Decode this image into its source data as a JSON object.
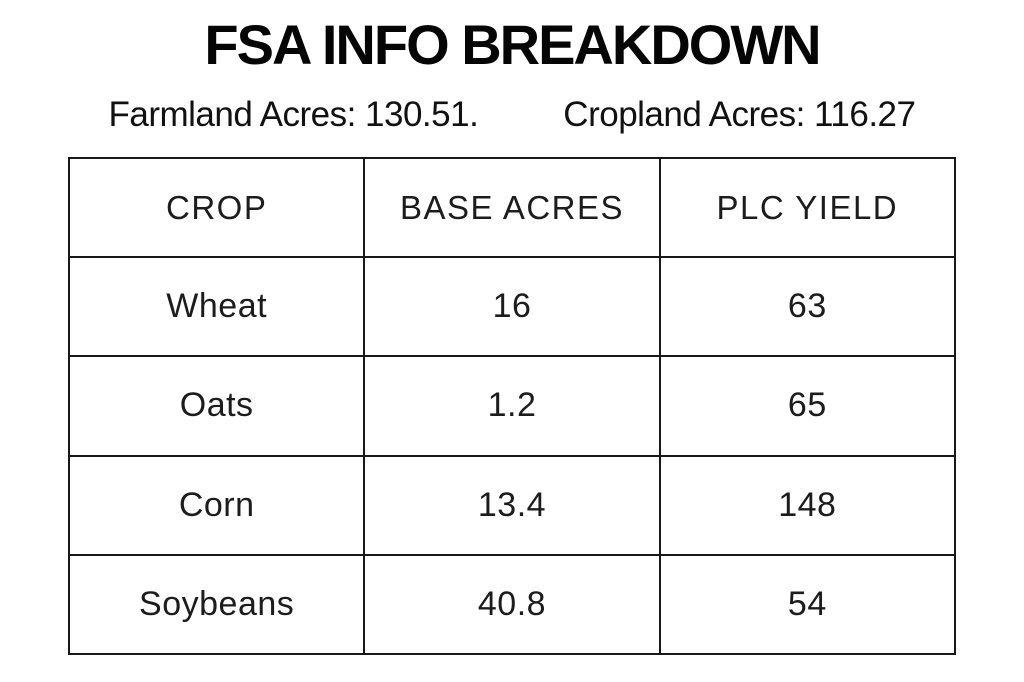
{
  "header": {
    "title": "FSA INFO BREAKDOWN"
  },
  "summary": {
    "farmland": "Farmland Acres: 130.51.",
    "cropland": "Cropland Acres: 116.27"
  },
  "table": {
    "headers": [
      "CROP",
      "BASE ACRES",
      "PLC YIELD"
    ],
    "rows": [
      [
        "Wheat",
        "16",
        "63"
      ],
      [
        "Oats",
        "1.2",
        "65"
      ],
      [
        "Corn",
        "13.4",
        "148"
      ],
      [
        "Soybeans",
        "40.8",
        "54"
      ]
    ]
  },
  "colors": {
    "background": "#ffffff",
    "text": "#000000",
    "table_border": "#181818"
  },
  "chart_data": {
    "type": "table",
    "title": "FSA INFO BREAKDOWN",
    "annotations": [
      {
        "label": "Farmland Acres",
        "value": 130.51
      },
      {
        "label": "Cropland Acres",
        "value": 116.27
      }
    ],
    "columns": [
      "CROP",
      "BASE ACRES",
      "PLC YIELD"
    ],
    "rows": [
      {
        "crop": "Wheat",
        "base_acres": 16,
        "plc_yield": 63
      },
      {
        "crop": "Oats",
        "base_acres": 1.2,
        "plc_yield": 65
      },
      {
        "crop": "Corn",
        "base_acres": 13.4,
        "plc_yield": 148
      },
      {
        "crop": "Soybeans",
        "base_acres": 40.8,
        "plc_yield": 54
      }
    ],
    "layout": {
      "grid": true,
      "legend": "none"
    }
  }
}
